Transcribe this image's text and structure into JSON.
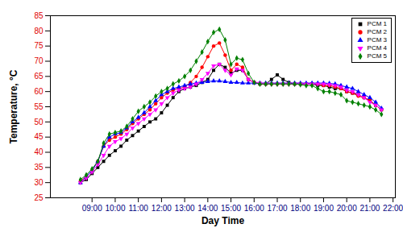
{
  "chart_data": {
    "type": "line",
    "x_label": "Day Time",
    "y_label": "Temperature, °C",
    "x": [
      8.5,
      8.75,
      9,
      9.25,
      9.5,
      9.75,
      10,
      10.25,
      10.5,
      10.75,
      11,
      11.25,
      11.5,
      11.75,
      12,
      12.25,
      12.5,
      12.75,
      13,
      13.25,
      13.5,
      13.75,
      14,
      14.25,
      14.5,
      14.75,
      15,
      15.25,
      15.5,
      15.75,
      16,
      16.25,
      16.5,
      16.75,
      17,
      17.25,
      17.5,
      17.75,
      18,
      18.25,
      18.5,
      18.75,
      19,
      19.25,
      19.5,
      19.75,
      20,
      20.25,
      20.5,
      20.75,
      21,
      21.25,
      21.5
    ],
    "series": [
      {
        "name": "PCM 1",
        "color": "#000000",
        "marker": "square",
        "values": [
          30,
          31,
          33,
          35,
          37,
          39,
          40.5,
          42,
          44,
          45.5,
          47,
          48.5,
          50,
          51,
          53,
          55.5,
          58,
          60,
          61,
          61.5,
          62,
          63,
          64,
          67,
          69,
          68,
          66,
          67,
          67,
          64,
          63,
          62.5,
          62.5,
          64,
          65.5,
          64,
          63,
          62.5,
          62.5,
          62.5,
          62.5,
          62,
          62,
          61.5,
          61,
          61,
          60,
          59.5,
          59,
          58,
          57,
          55.5,
          54
        ]
      },
      {
        "name": "PCM 2",
        "color": "#ff0000",
        "marker": "circle",
        "values": [
          30.5,
          32,
          34,
          37,
          42,
          44,
          45,
          46,
          47.5,
          49.5,
          51,
          52.5,
          54,
          56,
          58,
          59.5,
          60.5,
          61,
          61.5,
          63,
          65,
          68,
          71.5,
          75,
          76,
          72,
          67,
          69,
          68,
          64,
          63,
          62.5,
          62.5,
          62.5,
          62.5,
          62.5,
          62.5,
          62.5,
          62.5,
          62.5,
          62.5,
          62.5,
          62,
          62,
          61.5,
          61,
          60,
          59.5,
          58.5,
          58,
          57,
          55.5,
          54
        ]
      },
      {
        "name": "PCM 3",
        "color": "#0000ff",
        "marker": "triangle",
        "values": [
          30,
          32,
          34,
          37,
          42,
          45,
          46,
          46.5,
          48,
          50,
          51.5,
          53,
          55,
          57,
          59,
          60,
          61,
          61.5,
          62,
          62.5,
          62.8,
          63,
          63.3,
          63.5,
          63.5,
          63.3,
          63,
          63,
          62.8,
          62.8,
          62.8,
          62.8,
          62.8,
          62.8,
          62.8,
          62.8,
          62.8,
          62.8,
          62.8,
          62.8,
          62.8,
          62.8,
          62.8,
          62.7,
          62.5,
          62,
          61.5,
          61,
          60,
          59,
          58,
          56.5,
          54.5
        ]
      },
      {
        "name": "PCM 4",
        "color": "#ff00ff",
        "marker": "triangle-down",
        "values": [
          30,
          31.5,
          33.5,
          36,
          39,
          42,
          43.5,
          44.5,
          46,
          48,
          49.5,
          51,
          52.5,
          54,
          56,
          58,
          59.5,
          60.5,
          61,
          61.5,
          62.5,
          64,
          66,
          68.5,
          69,
          67,
          65.5,
          67.5,
          67,
          64,
          63,
          62.8,
          62.5,
          62.5,
          62.5,
          62.5,
          62.5,
          62.5,
          62.5,
          62.5,
          62.5,
          62.5,
          62.5,
          62.3,
          62,
          61.5,
          60.5,
          60,
          59,
          58,
          56.5,
          55.5,
          54
        ]
      },
      {
        "name": "PCM 5",
        "color": "#008000",
        "marker": "diamond",
        "values": [
          31,
          32.5,
          34.5,
          37,
          43,
          46,
          46.5,
          47,
          48.5,
          51,
          53.5,
          55,
          56.5,
          58.5,
          60,
          61,
          62.5,
          63.5,
          65,
          67,
          70,
          73,
          76.5,
          79.5,
          80.5,
          77,
          69,
          71,
          70.5,
          66,
          63,
          62.5,
          62.5,
          62.5,
          62.5,
          62.5,
          62.5,
          62.5,
          62.3,
          62,
          62,
          61,
          60,
          60,
          59.5,
          59,
          57,
          56.5,
          56,
          55.5,
          55,
          54,
          52.5
        ]
      }
    ],
    "xlim": [
      7.2,
      22.1
    ],
    "xticks": [
      {
        "value": 9,
        "label": "09:00"
      },
      {
        "value": 10,
        "label": "10:00"
      },
      {
        "value": 11,
        "label": "11:00"
      },
      {
        "value": 12,
        "label": "12:00"
      },
      {
        "value": 13,
        "label": "13:00"
      },
      {
        "value": 14,
        "label": "14:00"
      },
      {
        "value": 15,
        "label": "15:00"
      },
      {
        "value": 16,
        "label": "16:00"
      },
      {
        "value": 17,
        "label": "17:00"
      },
      {
        "value": 18,
        "label": "18:00"
      },
      {
        "value": 19,
        "label": "19:00"
      },
      {
        "value": 20,
        "label": "20:00"
      },
      {
        "value": 21,
        "label": "21:00"
      },
      {
        "value": 22,
        "label": "22:00"
      }
    ],
    "ylim": [
      25,
      85
    ],
    "yticks": [
      25,
      30,
      35,
      40,
      45,
      50,
      55,
      60,
      65,
      70,
      75,
      80,
      85
    ],
    "grid": false,
    "legend": "top-right"
  }
}
